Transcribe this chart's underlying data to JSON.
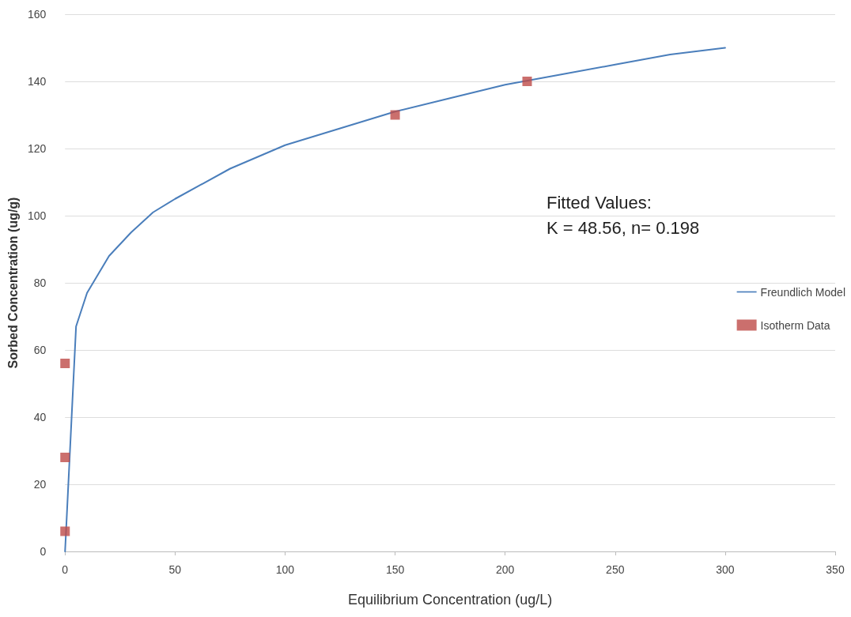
{
  "chart_data": {
    "type": "line",
    "xlabel": "Equilibrium Concentration (ug/L)",
    "ylabel": "Sorbed Concentration (ug/g)",
    "annotations": [
      "Fitted Values:\nK = 48.56, n= 0.198"
    ],
    "series": [
      {
        "name": "Freundlich Model",
        "type": "line",
        "color": "#4a7ebb",
        "marker": "none",
        "line_style": "solid",
        "x": [
          0,
          5,
          10,
          20,
          30,
          40,
          50,
          75,
          100,
          125,
          150,
          175,
          200,
          225,
          250,
          275,
          300
        ],
        "values": [
          0,
          67,
          77,
          88,
          95,
          101,
          105,
          114,
          121,
          126,
          131,
          135,
          139,
          142,
          145,
          148,
          150
        ]
      },
      {
        "name": "Isotherm Data",
        "type": "scatter",
        "color": "#be4b48",
        "marker": "square",
        "x": [
          0,
          0,
          0,
          150,
          210
        ],
        "values": [
          6,
          28,
          56,
          130,
          140
        ]
      }
    ],
    "xlim": [
      0,
      350
    ],
    "xticks": [
      0,
      50,
      100,
      150,
      200,
      250,
      300,
      350
    ],
    "ylim": [
      0,
      160
    ],
    "yticks": [
      0,
      20,
      40,
      60,
      80,
      100,
      120,
      140,
      160
    ],
    "grid": "y",
    "legend": "right"
  }
}
